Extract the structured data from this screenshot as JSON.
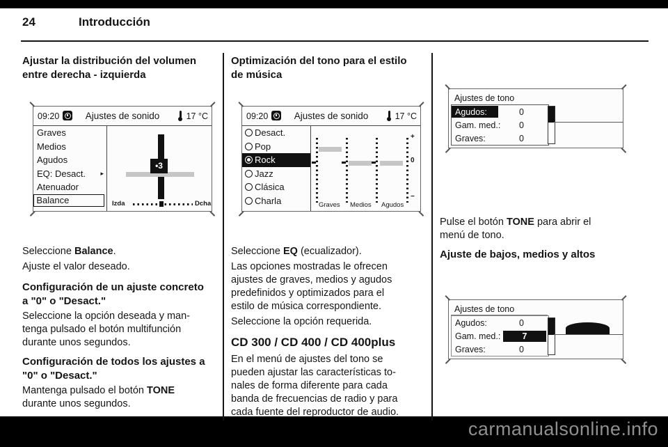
{
  "page": {
    "number": "24",
    "section": "Introducción"
  },
  "watermark": "carmanualsonline.info",
  "columns": {
    "left": {
      "heading_lines": [
        "Ajustar la distribución del volumen",
        "entre derecha - izquierda"
      ],
      "p_select_balance": [
        [
          [
            "Seleccione ",
            0
          ],
          [
            "Balance",
            1
          ],
          [
            ".",
            0
          ]
        ]
      ],
      "p_adjust": [
        [
          [
            "Ajuste el valor deseado.",
            0
          ]
        ]
      ],
      "h_single_lines": [
        "Configuración de un ajuste concreto",
        "a \"0\" o \"Desact.\""
      ],
      "p_single": [
        [
          [
            "Seleccione la opción deseada y man-",
            0
          ]
        ],
        [
          [
            "tenga pulsado el botón multifunción",
            0
          ]
        ],
        [
          [
            "durante unos segundos.",
            0
          ]
        ]
      ],
      "h_all_lines": [
        "Configuración de todos los ajustes a",
        "\"0\" o \"Desact.\""
      ],
      "p_all": [
        [
          [
            "Mantenga pulsado el botón ",
            0
          ],
          [
            "TONE",
            1
          ]
        ],
        [
          [
            "durante unos segundos.",
            0
          ]
        ]
      ]
    },
    "middle": {
      "heading_lines": [
        "Optimización del tono para el estilo",
        "de música"
      ],
      "p_select_eq": [
        [
          [
            "Seleccione ",
            0
          ],
          [
            "EQ",
            1
          ],
          [
            " (ecualizador).",
            0
          ]
        ]
      ],
      "p_desc": [
        [
          [
            "Las opciones mostradas le ofrecen",
            0
          ]
        ],
        [
          [
            "ajustes de graves, medios y agudos",
            0
          ]
        ],
        [
          [
            "predefinidos y optimizados para el",
            0
          ]
        ],
        [
          [
            "estilo de música correspondiente.",
            0
          ]
        ]
      ],
      "p_select_req": [
        [
          [
            "Seleccione la opción requerida.",
            0
          ]
        ]
      ],
      "h_models": "CD 300 / CD 400 / CD 400plus",
      "p_models": [
        [
          [
            "En el menú de ajustes del tono se",
            0
          ]
        ],
        [
          [
            "pueden ajustar las características to-",
            0
          ]
        ],
        [
          [
            "nales de forma diferente para cada",
            0
          ]
        ],
        [
          [
            "banda de frecuencias de radio y para",
            0
          ]
        ],
        [
          [
            "cada fuente del reproductor de audio.",
            0
          ]
        ]
      ]
    },
    "right": {
      "p_tone": [
        [
          [
            "Pulse el botón ",
            0
          ],
          [
            "TONE",
            1
          ],
          [
            " para abrir el",
            0
          ]
        ],
        [
          [
            "menú de tono.",
            0
          ]
        ]
      ],
      "h_adjust": "Ajuste de bajos, medios y altos"
    }
  },
  "screens": {
    "sound1": {
      "time": "09:20",
      "title": "Ajustes de sonido",
      "temp": "17 °C",
      "menu": [
        {
          "label": "Graves"
        },
        {
          "label": "Medios"
        },
        {
          "label": "Agudos"
        },
        {
          "label": "EQ: Desact.",
          "arrow": "▸"
        },
        {
          "label": "Atenuador"
        },
        {
          "label": "Balance"
        }
      ],
      "balance_value": "•3",
      "left_label": "Izda",
      "right_label": "Dcha"
    },
    "sound2": {
      "time": "09:20",
      "title": "Ajustes de sonido",
      "temp": "17 °C",
      "options": [
        {
          "label": "Desact."
        },
        {
          "label": "Pop"
        },
        {
          "label": "Rock"
        },
        {
          "label": "Jazz"
        },
        {
          "label": "Clásica"
        },
        {
          "label": "Charla"
        }
      ],
      "band_labels": [
        "Graves",
        "Medios",
        "Agudos"
      ],
      "scale_plus": "+",
      "scale_zero": "0",
      "scale_minus": "−"
    },
    "tone1": {
      "title": "Ajustes de tono",
      "rows": [
        {
          "label": "Agudos:",
          "value": "0"
        },
        {
          "label": "Gam. med.:",
          "value": "0"
        },
        {
          "label": "Graves:",
          "value": "0"
        }
      ]
    },
    "tone2": {
      "title": "Ajustes de tono",
      "rows": [
        {
          "label": "Agudos:",
          "value": "0"
        },
        {
          "label": "Gam. med.:",
          "value": "7"
        },
        {
          "label": "Graves:",
          "value": "0"
        }
      ]
    }
  }
}
